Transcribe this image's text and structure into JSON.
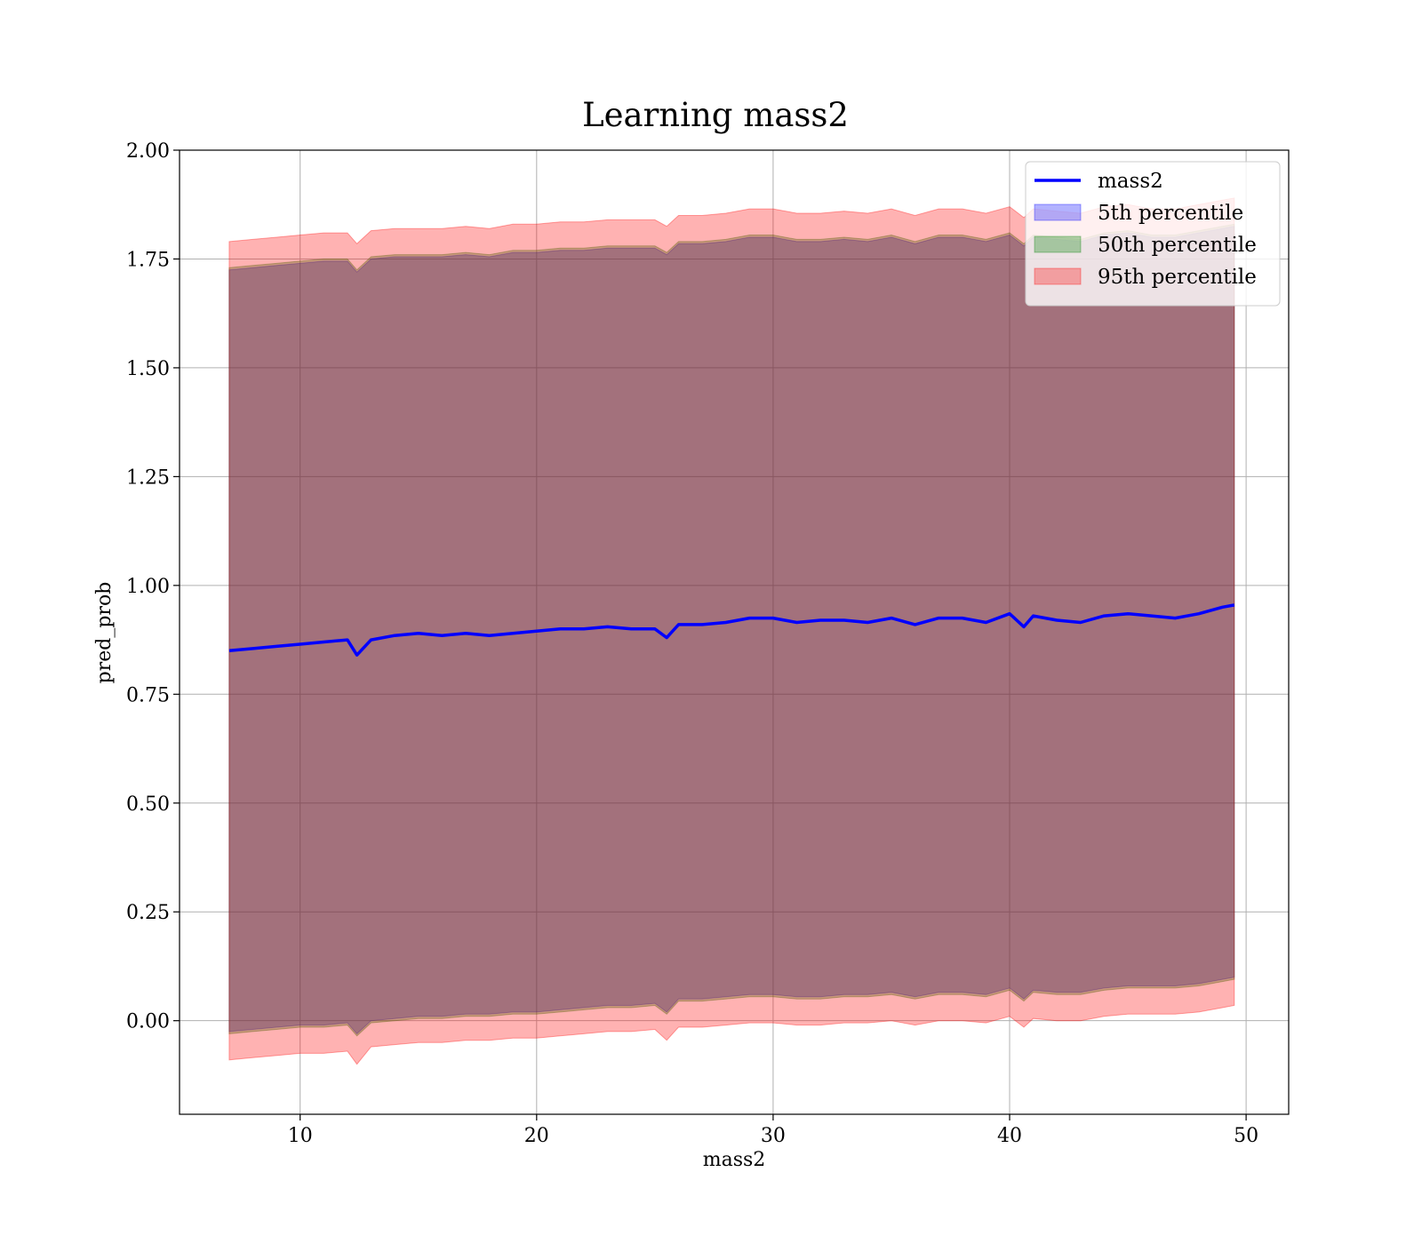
{
  "chart_data": {
    "type": "line",
    "title": "Learning mass2",
    "xlabel": "mass2",
    "ylabel": "pred_prob",
    "xlim": [
      4.9,
      51.8
    ],
    "ylim": [
      -0.215,
      2.0
    ],
    "xticks": [
      10,
      20,
      30,
      40,
      50
    ],
    "xtick_labels": [
      "10",
      "20",
      "30",
      "40",
      "50"
    ],
    "yticks": [
      0.0,
      0.25,
      0.5,
      0.75,
      1.0,
      1.25,
      1.5,
      1.75,
      2.0
    ],
    "ytick_labels": [
      "0.00",
      "0.25",
      "0.50",
      "0.75",
      "1.00",
      "1.25",
      "1.50",
      "1.75",
      "2.00"
    ],
    "grid": true,
    "legend_position": "top-right",
    "x": [
      7.0,
      8.0,
      9.0,
      10.0,
      11.0,
      12.0,
      12.4,
      13.0,
      14.0,
      15.0,
      16.0,
      17.0,
      18.0,
      19.0,
      20.0,
      21.0,
      22.0,
      23.0,
      24.0,
      25.0,
      25.5,
      26.0,
      27.0,
      28.0,
      29.0,
      30.0,
      31.0,
      32.0,
      33.0,
      34.0,
      35.0,
      36.0,
      37.0,
      38.0,
      39.0,
      40.0,
      40.6,
      41.0,
      42.0,
      43.0,
      44.0,
      45.0,
      46.0,
      47.0,
      48.0,
      49.0,
      49.5
    ],
    "series": [
      {
        "name": "mass2",
        "kind": "line",
        "color": "#0000ff",
        "values": [
          0.85,
          0.855,
          0.86,
          0.865,
          0.87,
          0.875,
          0.84,
          0.875,
          0.885,
          0.89,
          0.885,
          0.89,
          0.885,
          0.89,
          0.895,
          0.9,
          0.9,
          0.905,
          0.9,
          0.9,
          0.88,
          0.91,
          0.91,
          0.915,
          0.925,
          0.925,
          0.915,
          0.92,
          0.92,
          0.915,
          0.925,
          0.91,
          0.925,
          0.925,
          0.915,
          0.935,
          0.905,
          0.93,
          0.92,
          0.915,
          0.93,
          0.935,
          0.93,
          0.925,
          0.935,
          0.95,
          0.955
        ]
      },
      {
        "name": "5th percentile",
        "kind": "band",
        "color": "#0000ff",
        "lower": [
          -0.025,
          -0.02,
          -0.015,
          -0.01,
          -0.01,
          -0.005,
          -0.03,
          0.0,
          0.005,
          0.01,
          0.01,
          0.015,
          0.015,
          0.02,
          0.02,
          0.025,
          0.03,
          0.035,
          0.035,
          0.04,
          0.02,
          0.05,
          0.05,
          0.055,
          0.06,
          0.06,
          0.055,
          0.055,
          0.06,
          0.06,
          0.065,
          0.055,
          0.065,
          0.065,
          0.06,
          0.075,
          0.05,
          0.07,
          0.065,
          0.065,
          0.075,
          0.08,
          0.08,
          0.08,
          0.085,
          0.095,
          0.1
        ],
        "upper": [
          1.725,
          1.73,
          1.735,
          1.74,
          1.745,
          1.745,
          1.72,
          1.75,
          1.755,
          1.755,
          1.755,
          1.76,
          1.755,
          1.765,
          1.765,
          1.77,
          1.77,
          1.775,
          1.775,
          1.775,
          1.76,
          1.785,
          1.785,
          1.79,
          1.8,
          1.8,
          1.79,
          1.79,
          1.795,
          1.79,
          1.8,
          1.785,
          1.8,
          1.8,
          1.79,
          1.805,
          1.78,
          1.8,
          1.795,
          1.79,
          1.805,
          1.81,
          1.8,
          1.8,
          1.81,
          1.82,
          1.825
        ]
      },
      {
        "name": "50th percentile",
        "kind": "band",
        "color": "#008000",
        "lower": [
          -0.03,
          -0.025,
          -0.02,
          -0.015,
          -0.015,
          -0.01,
          -0.035,
          -0.005,
          0.0,
          0.005,
          0.005,
          0.01,
          0.01,
          0.015,
          0.015,
          0.02,
          0.025,
          0.03,
          0.03,
          0.035,
          0.015,
          0.045,
          0.045,
          0.05,
          0.055,
          0.055,
          0.05,
          0.05,
          0.055,
          0.055,
          0.06,
          0.05,
          0.06,
          0.06,
          0.055,
          0.07,
          0.045,
          0.065,
          0.06,
          0.06,
          0.07,
          0.075,
          0.075,
          0.075,
          0.08,
          0.09,
          0.095
        ],
        "upper": [
          1.73,
          1.735,
          1.74,
          1.745,
          1.75,
          1.75,
          1.725,
          1.755,
          1.76,
          1.76,
          1.76,
          1.765,
          1.76,
          1.77,
          1.77,
          1.775,
          1.775,
          1.78,
          1.78,
          1.78,
          1.765,
          1.79,
          1.79,
          1.795,
          1.805,
          1.805,
          1.795,
          1.795,
          1.8,
          1.795,
          1.805,
          1.79,
          1.805,
          1.805,
          1.795,
          1.81,
          1.785,
          1.805,
          1.8,
          1.795,
          1.81,
          1.815,
          1.805,
          1.805,
          1.815,
          1.825,
          1.83
        ]
      },
      {
        "name": "95th percentile",
        "kind": "band",
        "color": "#ff0000",
        "lower": [
          -0.09,
          -0.085,
          -0.08,
          -0.075,
          -0.075,
          -0.07,
          -0.1,
          -0.06,
          -0.055,
          -0.05,
          -0.05,
          -0.045,
          -0.045,
          -0.04,
          -0.04,
          -0.035,
          -0.03,
          -0.025,
          -0.025,
          -0.02,
          -0.045,
          -0.015,
          -0.015,
          -0.01,
          -0.005,
          -0.005,
          -0.01,
          -0.01,
          -0.005,
          -0.005,
          0.0,
          -0.01,
          0.0,
          0.0,
          -0.005,
          0.01,
          -0.015,
          0.005,
          0.0,
          0.0,
          0.01,
          0.015,
          0.015,
          0.015,
          0.02,
          0.03,
          0.035
        ],
        "upper": [
          1.79,
          1.795,
          1.8,
          1.805,
          1.81,
          1.81,
          1.785,
          1.815,
          1.82,
          1.82,
          1.82,
          1.825,
          1.82,
          1.83,
          1.83,
          1.835,
          1.835,
          1.84,
          1.84,
          1.84,
          1.825,
          1.85,
          1.85,
          1.855,
          1.865,
          1.865,
          1.855,
          1.855,
          1.86,
          1.855,
          1.865,
          1.85,
          1.865,
          1.865,
          1.855,
          1.87,
          1.845,
          1.865,
          1.86,
          1.855,
          1.87,
          1.875,
          1.865,
          1.865,
          1.875,
          1.885,
          1.89
        ]
      }
    ],
    "legend": [
      {
        "label": "mass2",
        "kind": "line",
        "color": "#0000ff"
      },
      {
        "label": "5th percentile",
        "kind": "patch",
        "color": "#0000ff"
      },
      {
        "label": "50th percentile",
        "kind": "patch",
        "color": "#008000"
      },
      {
        "label": "95th percentile",
        "kind": "patch",
        "color": "#ff0000"
      }
    ]
  }
}
